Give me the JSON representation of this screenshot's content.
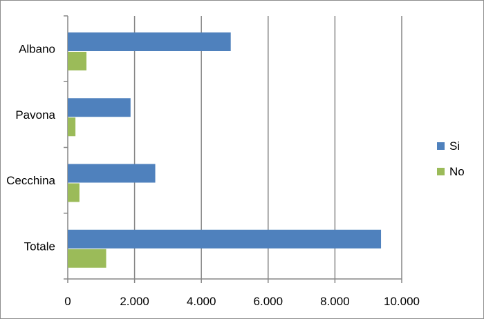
{
  "chart_data": {
    "type": "bar",
    "orientation": "horizontal",
    "categories": [
      "Albano",
      "Pavona",
      "Cecchina",
      "Totale"
    ],
    "series": [
      {
        "name": "Si",
        "color": "#4f81bd",
        "values": [
          4880,
          1880,
          2620,
          9380
        ]
      },
      {
        "name": "No",
        "color": "#9bbb59",
        "values": [
          560,
          230,
          350,
          1150
        ]
      }
    ],
    "xlim": [
      0,
      10000
    ],
    "x_ticks": [
      0,
      2000,
      4000,
      6000,
      8000,
      10000
    ],
    "x_tick_labels": [
      "0",
      "2.000",
      "4.000",
      "6.000",
      "8.000",
      "10.000"
    ],
    "grid": true,
    "legend_position": "right",
    "title": "",
    "xlabel": "",
    "ylabel": ""
  }
}
